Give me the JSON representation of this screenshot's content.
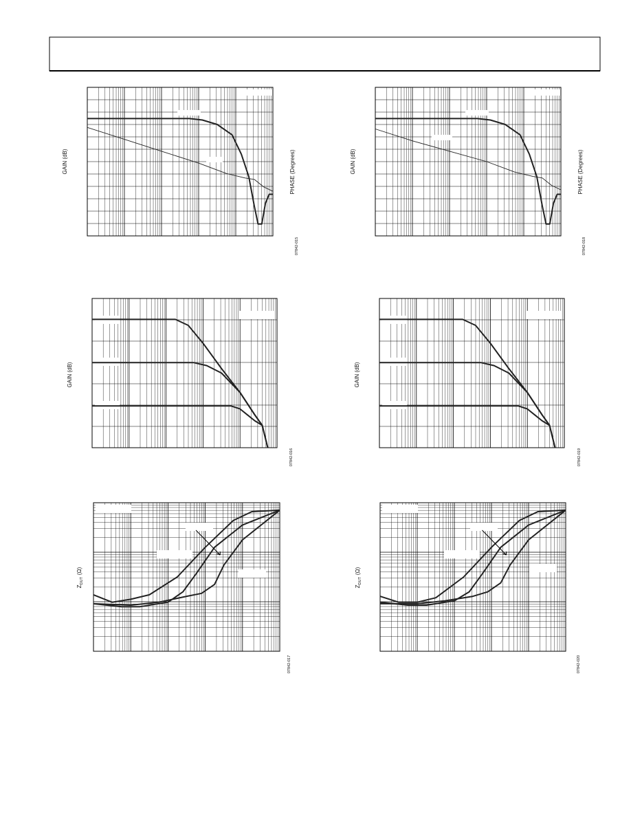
{
  "figures": [
    {
      "y_label": "GAIN (dB)",
      "y2_label": "PHASE (Degrees)",
      "code": "07842-015",
      "series": [
        {
          "x": [
            0,
            55,
            62,
            70,
            78,
            83,
            87,
            90,
            92,
            94,
            96,
            98,
            100
          ],
          "values": [
            79,
            79,
            78,
            75,
            68,
            55,
            40,
            20,
            8,
            8,
            22,
            28,
            28
          ]
        },
        {
          "x": [
            0,
            20,
            40,
            60,
            75,
            85,
            90,
            95,
            100
          ],
          "values": [
            73,
            65,
            57,
            49,
            42,
            39,
            38,
            33,
            30
          ]
        }
      ]
    },
    {
      "y_label": "GAIN (dB)",
      "y2_label": "PHASE (Degrees)",
      "code": "07842-018",
      "series": [
        {
          "x": [
            0,
            55,
            62,
            70,
            78,
            83,
            87,
            90,
            92,
            94,
            96,
            98,
            100
          ],
          "values": [
            79,
            79,
            78,
            75,
            68,
            55,
            40,
            20,
            8,
            8,
            22,
            28,
            28
          ]
        },
        {
          "x": [
            0,
            20,
            40,
            60,
            75,
            85,
            90,
            95,
            100
          ],
          "values": [
            72,
            64,
            57,
            50,
            43,
            40,
            39,
            34,
            31
          ]
        }
      ]
    },
    {
      "y_label": "GAIN (dB)",
      "code": "07842-016",
      "series": [
        {
          "x": [
            0,
            45,
            52,
            60,
            70,
            80,
            88,
            92,
            95
          ],
          "values": [
            86,
            86,
            82,
            70,
            53,
            37,
            22,
            15,
            0
          ]
        },
        {
          "x": [
            0,
            55,
            62,
            70,
            80,
            88,
            92
          ],
          "values": [
            57,
            57,
            55,
            50,
            37,
            22,
            15
          ]
        },
        {
          "x": [
            0,
            75,
            80,
            84,
            88,
            92,
            95
          ],
          "values": [
            28,
            28,
            26,
            22,
            18,
            15,
            0
          ]
        }
      ]
    },
    {
      "y_label": "GAIN (dB)",
      "code": "07842-019",
      "series": [
        {
          "x": [
            0,
            45,
            52,
            60,
            70,
            80,
            88,
            92,
            95
          ],
          "values": [
            86,
            86,
            82,
            70,
            53,
            37,
            22,
            15,
            0
          ]
        },
        {
          "x": [
            0,
            55,
            62,
            70,
            80,
            88,
            92
          ],
          "values": [
            57,
            57,
            55,
            50,
            37,
            22,
            15
          ]
        },
        {
          "x": [
            0,
            75,
            80,
            84,
            88,
            92,
            95
          ],
          "values": [
            28,
            28,
            26,
            22,
            18,
            15,
            0
          ]
        }
      ]
    },
    {
      "y_label": {
        "main": "Z",
        "sub": "DUT",
        "unit": "(Ω)"
      },
      "code": "07842-017",
      "series": [
        {
          "x": [
            0,
            10,
            20,
            30,
            45,
            60,
            75,
            85,
            100
          ],
          "values": [
            38,
            33,
            35,
            38,
            50,
            70,
            88,
            94,
            95
          ]
        },
        {
          "x": [
            0,
            15,
            25,
            40,
            48,
            55,
            65,
            80,
            100
          ],
          "values": [
            32,
            30,
            30,
            33,
            40,
            52,
            70,
            85,
            95
          ]
        },
        {
          "x": [
            0,
            20,
            35,
            50,
            58,
            65,
            70,
            80,
            100
          ],
          "values": [
            32,
            31,
            33,
            37,
            39,
            45,
            58,
            75,
            95
          ]
        }
      ]
    },
    {
      "y_label": {
        "main": "Z",
        "sub": "DUT",
        "unit": "(Ω)"
      },
      "code": "07842-020",
      "series": [
        {
          "x": [
            0,
            10,
            20,
            30,
            45,
            60,
            75,
            85,
            100
          ],
          "values": [
            37,
            33,
            33,
            36,
            50,
            70,
            88,
            94,
            95
          ]
        },
        {
          "x": [
            0,
            15,
            25,
            40,
            48,
            55,
            65,
            80,
            100
          ],
          "values": [
            33,
            31,
            31,
            34,
            40,
            52,
            70,
            85,
            95
          ]
        },
        {
          "x": [
            0,
            20,
            35,
            50,
            58,
            65,
            70,
            80,
            100
          ],
          "values": [
            32,
            32,
            34,
            37,
            40,
            46,
            58,
            75,
            95
          ]
        }
      ]
    }
  ]
}
